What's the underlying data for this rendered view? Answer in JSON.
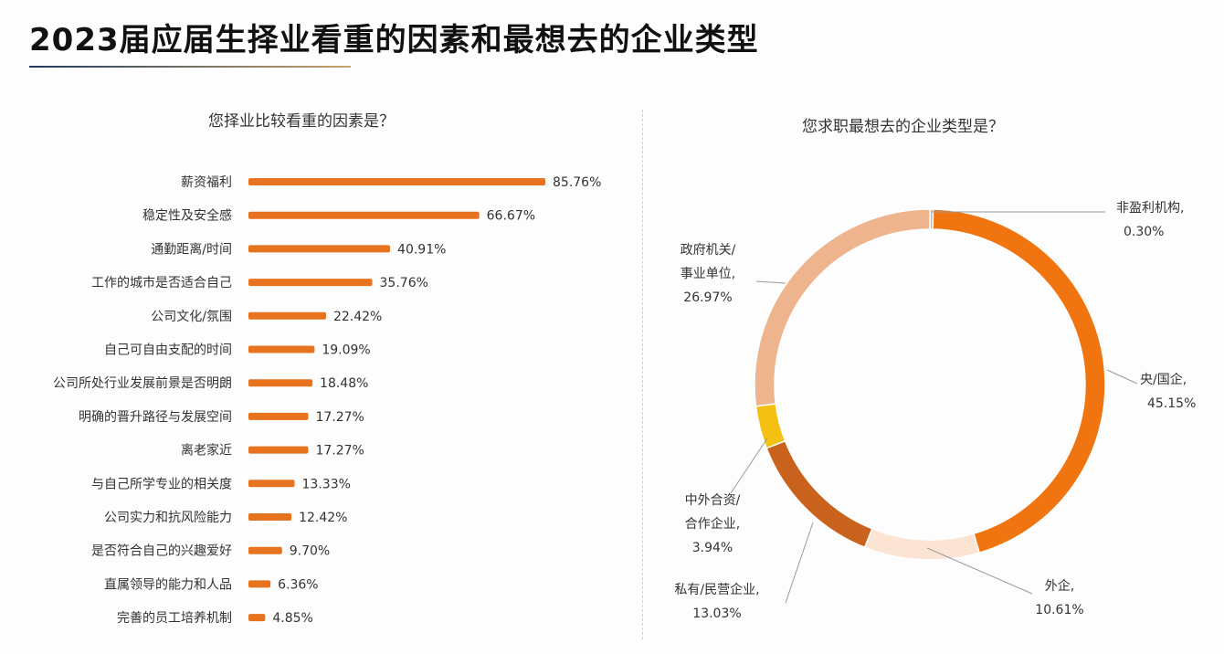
{
  "title": "2023届应届生择业看重的因素和最想去的企业类型",
  "chart_data": [
    {
      "type": "bar",
      "orientation": "horizontal",
      "title": "您择业比较看重的因素是？",
      "categories": [
        "薪资福利",
        "稳定性及安全感",
        "通勤距离/时间",
        "工作的城市是否适合自己",
        "公司文化/氛围",
        "自己可自由支配的时间",
        "公司所处行业发展前景是否明朗",
        "明确的晋升路径与发展空间",
        "离老家近",
        "与自己所学专业的相关度",
        "公司实力和抗风险能力",
        "是否符合自己的兴趣爱好",
        "直属领导的能力和人品",
        "完善的员工培养机制"
      ],
      "values": [
        85.76,
        66.67,
        40.91,
        35.76,
        22.42,
        19.09,
        18.48,
        17.27,
        17.27,
        13.33,
        12.42,
        9.7,
        6.36,
        4.85
      ],
      "value_labels": [
        "85.76%",
        "66.67%",
        "40.91%",
        "35.76%",
        "22.42%",
        "19.09%",
        "18.48%",
        "17.27%",
        "17.27%",
        "13.33%",
        "12.42%",
        "9.70%",
        "6.36%",
        "4.85%"
      ],
      "unit": "%",
      "color": "#e8731f"
    },
    {
      "type": "pie",
      "subtype": "donut",
      "title": "您求职最想去的企业类型是？",
      "slices": [
        {
          "label": [
            "非盈利机构,"
          ],
          "value": 0.3,
          "value_label": "0.30%",
          "color": "#bdbdbd"
        },
        {
          "label": [
            "央/国企,"
          ],
          "value": 45.15,
          "value_label": "45.15%",
          "color": "#f07410"
        },
        {
          "label": [
            "外企,"
          ],
          "value": 10.61,
          "value_label": "10.61%",
          "color": "#fbe4d4"
        },
        {
          "label": [
            "私有/民营企业,"
          ],
          "value": 13.03,
          "value_label": "13.03%",
          "color": "#c9621c"
        },
        {
          "label": [
            "中外合资/",
            "合作企业,"
          ],
          "value": 3.94,
          "value_label": "3.94%",
          "color": "#f4c012"
        },
        {
          "label": [
            "政府机关/",
            "事业单位,"
          ],
          "value": 26.97,
          "value_label": "26.97%",
          "color": "#eeb48d"
        }
      ],
      "start": "top",
      "direction": "clockwise"
    }
  ]
}
